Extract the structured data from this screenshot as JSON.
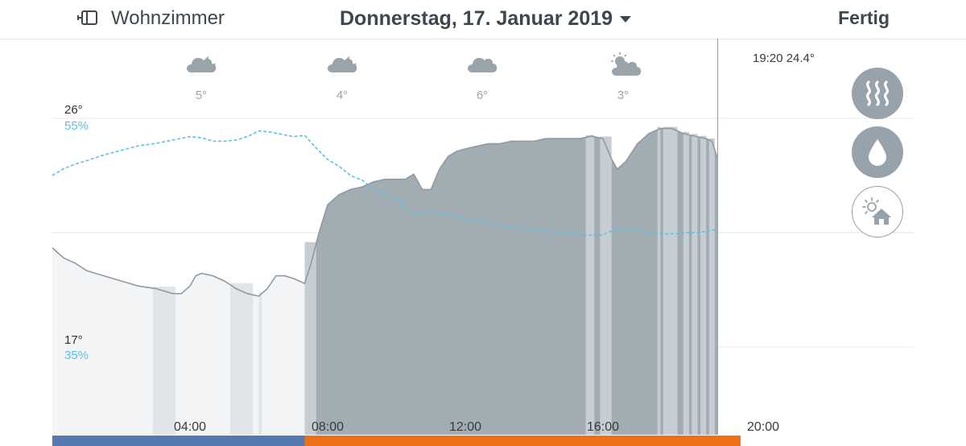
{
  "header": {
    "room_icon": "window-icon",
    "room_label": "Wohnzimmer",
    "date_label": "Donnerstag, 17. Januar 2019",
    "done_label": "Fertig"
  },
  "current_readout": "19:20 24.4°",
  "side_buttons": [
    {
      "icon": "heating-icon",
      "active": true
    },
    {
      "icon": "humidity-drop-icon",
      "active": true
    },
    {
      "icon": "sun-house-icon",
      "active": false
    }
  ],
  "colors": {
    "temperature_area": "#a2acb3",
    "temperature_line": "#8f9aa3",
    "humidity_line": "#5bc0e8",
    "heating_off_bar": "#5478b0",
    "heating_on_bar": "#ee6f16"
  },
  "chart_data": {
    "type": "area",
    "weather": [
      {
        "time": "02:00",
        "icon": "cloud-moon-icon",
        "label": "5°"
      },
      {
        "time": "06:00",
        "icon": "cloud-moon-icon",
        "label": "4°"
      },
      {
        "time": "10:00",
        "icon": "cloud-icon",
        "label": "6°"
      },
      {
        "time": "14:00",
        "icon": "cloud-sun-icon",
        "label": "3°"
      }
    ],
    "y_labels": {
      "temp_top": "26°",
      "hum_top": "55%",
      "temp_bottom": "17°",
      "hum_bottom": "35%"
    },
    "temp_range": [
      17,
      26
    ],
    "humidity_range": [
      35,
      55
    ],
    "x_range": [
      "00:00",
      "20:00"
    ],
    "x_ticks": [
      {
        "time": "04:00",
        "label": "04:00"
      },
      {
        "time": "08:00",
        "label": "08:00"
      },
      {
        "time": "12:00",
        "label": "12:00"
      },
      {
        "time": "16:00",
        "label": "16:00"
      },
      {
        "time": "20:00",
        "label": "20:00"
      }
    ],
    "now": "19:20",
    "heating_start": "07:20",
    "series": [
      {
        "key": "temperature",
        "points": [
          [
            "00:00",
            20.9
          ],
          [
            "00:20",
            20.5
          ],
          [
            "00:40",
            20.3
          ],
          [
            "01:00",
            20.0
          ],
          [
            "01:30",
            19.8
          ],
          [
            "02:00",
            19.6
          ],
          [
            "02:30",
            19.4
          ],
          [
            "03:00",
            19.3
          ],
          [
            "03:30",
            19.1
          ],
          [
            "03:45",
            19.1
          ],
          [
            "04:00",
            19.4
          ],
          [
            "04:10",
            19.8
          ],
          [
            "04:20",
            19.9
          ],
          [
            "04:40",
            19.8
          ],
          [
            "05:00",
            19.6
          ],
          [
            "05:20",
            19.3
          ],
          [
            "05:40",
            19.1
          ],
          [
            "06:00",
            19.0
          ],
          [
            "06:15",
            19.3
          ],
          [
            "06:30",
            19.8
          ],
          [
            "06:45",
            19.8
          ],
          [
            "07:00",
            19.7
          ],
          [
            "07:20",
            19.5
          ],
          [
            "07:30",
            20.2
          ],
          [
            "07:45",
            21.5
          ],
          [
            "08:00",
            22.6
          ],
          [
            "08:20",
            23.0
          ],
          [
            "08:40",
            23.2
          ],
          [
            "09:00",
            23.3
          ],
          [
            "09:20",
            23.5
          ],
          [
            "09:40",
            23.6
          ],
          [
            "10:00",
            23.6
          ],
          [
            "10:15",
            23.6
          ],
          [
            "10:30",
            23.8
          ],
          [
            "10:45",
            23.2
          ],
          [
            "11:00",
            23.2
          ],
          [
            "11:15",
            24.0
          ],
          [
            "11:30",
            24.5
          ],
          [
            "11:45",
            24.7
          ],
          [
            "12:00",
            24.8
          ],
          [
            "12:20",
            24.9
          ],
          [
            "12:40",
            25.0
          ],
          [
            "13:00",
            25.0
          ],
          [
            "13:20",
            25.1
          ],
          [
            "13:40",
            25.1
          ],
          [
            "14:00",
            25.1
          ],
          [
            "14:20",
            25.2
          ],
          [
            "14:40",
            25.2
          ],
          [
            "15:00",
            25.2
          ],
          [
            "15:20",
            25.2
          ],
          [
            "15:40",
            25.3
          ],
          [
            "16:00",
            25.2
          ],
          [
            "16:15",
            24.4
          ],
          [
            "16:25",
            24.0
          ],
          [
            "16:40",
            24.3
          ],
          [
            "17:00",
            25.0
          ],
          [
            "17:20",
            25.4
          ],
          [
            "17:40",
            25.6
          ],
          [
            "18:00",
            25.6
          ],
          [
            "18:20",
            25.4
          ],
          [
            "18:40",
            25.3
          ],
          [
            "19:00",
            25.2
          ],
          [
            "19:10",
            25.1
          ],
          [
            "19:20",
            24.4
          ]
        ]
      },
      {
        "key": "humidity",
        "points": [
          [
            "00:00",
            50.0
          ],
          [
            "00:20",
            50.6
          ],
          [
            "00:40",
            51.0
          ],
          [
            "01:00",
            51.3
          ],
          [
            "01:30",
            51.8
          ],
          [
            "02:00",
            52.2
          ],
          [
            "02:30",
            52.6
          ],
          [
            "03:00",
            52.8
          ],
          [
            "03:30",
            53.1
          ],
          [
            "04:00",
            53.4
          ],
          [
            "04:20",
            53.3
          ],
          [
            "04:40",
            53.0
          ],
          [
            "05:00",
            53.0
          ],
          [
            "05:20",
            53.1
          ],
          [
            "05:40",
            53.4
          ],
          [
            "06:00",
            53.9
          ],
          [
            "06:20",
            53.8
          ],
          [
            "06:40",
            53.6
          ],
          [
            "07:00",
            53.4
          ],
          [
            "07:20",
            53.5
          ],
          [
            "07:40",
            52.4
          ],
          [
            "08:00",
            51.4
          ],
          [
            "08:20",
            50.8
          ],
          [
            "08:40",
            50.0
          ],
          [
            "09:00",
            49.6
          ],
          [
            "09:20",
            48.8
          ],
          [
            "09:40",
            48.4
          ],
          [
            "10:00",
            48.0
          ],
          [
            "10:20",
            46.8
          ],
          [
            "10:40",
            46.6
          ],
          [
            "11:00",
            46.8
          ],
          [
            "11:20",
            46.7
          ],
          [
            "11:40",
            46.5
          ],
          [
            "12:00",
            46.2
          ],
          [
            "12:30",
            46.0
          ],
          [
            "13:00",
            45.6
          ],
          [
            "13:30",
            45.4
          ],
          [
            "14:00",
            45.2
          ],
          [
            "14:30",
            45.1
          ],
          [
            "15:00",
            44.9
          ],
          [
            "15:30",
            44.8
          ],
          [
            "16:00",
            44.8
          ],
          [
            "16:20",
            45.3
          ],
          [
            "16:40",
            45.3
          ],
          [
            "17:00",
            45.2
          ],
          [
            "17:30",
            44.9
          ],
          [
            "18:00",
            44.9
          ],
          [
            "18:30",
            45.0
          ],
          [
            "19:00",
            45.1
          ],
          [
            "19:20",
            45.3
          ]
        ]
      }
    ],
    "highlight_bands": [
      [
        "02:55",
        "03:35"
      ],
      [
        "05:10",
        "05:50"
      ],
      [
        "06:00",
        "06:05"
      ],
      [
        "07:20",
        "07:40"
      ],
      [
        "15:30",
        "15:45"
      ],
      [
        "15:55",
        "16:15"
      ],
      [
        "17:35",
        "17:40"
      ],
      [
        "17:45",
        "18:10"
      ],
      [
        "18:20",
        "18:30"
      ],
      [
        "18:35",
        "18:45"
      ],
      [
        "18:50",
        "19:00"
      ],
      [
        "19:05",
        "19:15"
      ]
    ]
  }
}
